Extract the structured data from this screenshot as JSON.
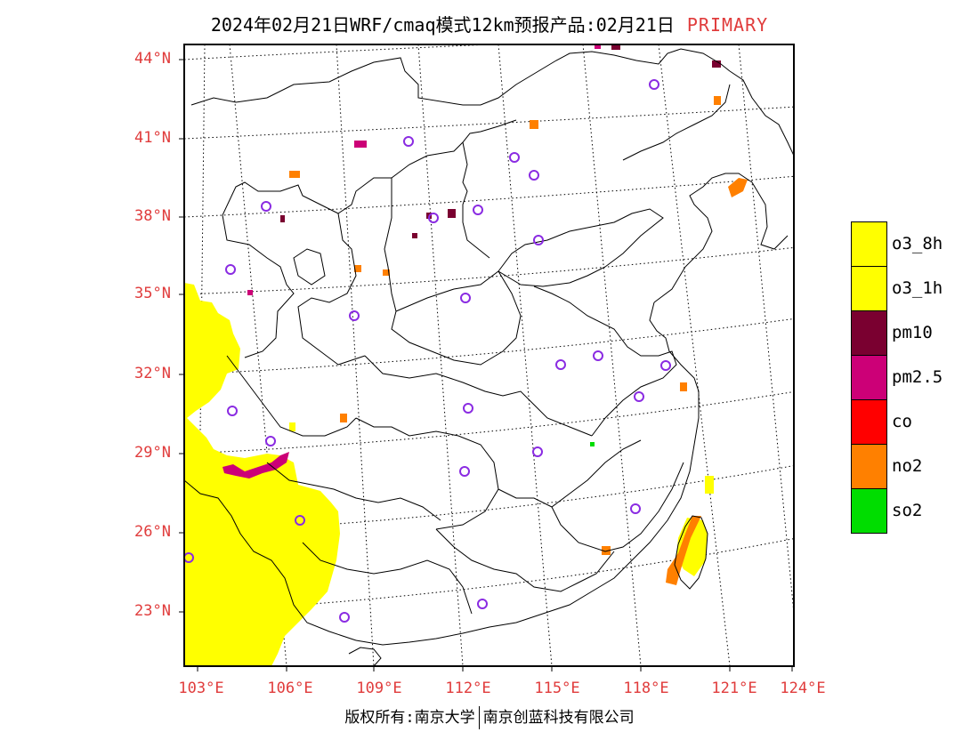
{
  "header": {
    "title": "2024年02月21日WRF/cmaq模式12km预报产品:02月21日",
    "tag": "PRIMARY"
  },
  "colors": {
    "accent_red": "#e03c3c",
    "o3_8h": "#ffff00",
    "o3_1h": "#ffff00",
    "pm10": "#7a0030",
    "pm2.5": "#cc0077",
    "co": "#ff0000",
    "no2": "#ff8000",
    "so2": "#00dd00",
    "station_circle": "#8a2be2"
  },
  "axes": {
    "lat_labels": [
      {
        "text": "44°N",
        "value": 44
      },
      {
        "text": "41°N",
        "value": 41
      },
      {
        "text": "38°N",
        "value": 38
      },
      {
        "text": "35°N",
        "value": 35
      },
      {
        "text": "32°N",
        "value": 32
      },
      {
        "text": "29°N",
        "value": 29
      },
      {
        "text": "26°N",
        "value": 26
      },
      {
        "text": "23°N",
        "value": 23
      }
    ],
    "lon_labels": [
      {
        "text": "103°E",
        "value": 103
      },
      {
        "text": "106°E",
        "value": 106
      },
      {
        "text": "109°E",
        "value": 109
      },
      {
        "text": "112°E",
        "value": 112
      },
      {
        "text": "115°E",
        "value": 115
      },
      {
        "text": "118°E",
        "value": 118
      },
      {
        "text": "121°E",
        "value": 121
      },
      {
        "text": "124°E",
        "value": 124
      }
    ]
  },
  "legend": {
    "items": [
      {
        "label": "o3_8h",
        "color": "#ffff00"
      },
      {
        "label": "o3_1h",
        "color": "#ffff00"
      },
      {
        "label": "pm10",
        "color": "#7a0030"
      },
      {
        "label": "pm2.5",
        "color": "#cc0077"
      },
      {
        "label": "co",
        "color": "#ff0000"
      },
      {
        "label": "no2",
        "color": "#ff8000"
      },
      {
        "label": "so2",
        "color": "#00dd00"
      }
    ]
  },
  "footer": {
    "left": "版权所有:南京大学",
    "right": "南京创蓝科技有限公司"
  }
}
